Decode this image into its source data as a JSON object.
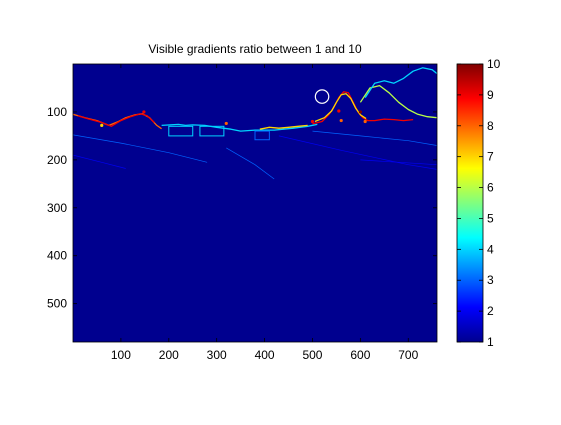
{
  "chart_data": [
    {
      "type": "heatmap",
      "title": "Visible gradients ratio between 1 and 10",
      "xlabel": "",
      "ylabel": "",
      "xlim": [
        0,
        760
      ],
      "ylim": [
        580,
        0
      ],
      "xticks": [
        100,
        200,
        300,
        400,
        500,
        600,
        700
      ],
      "yticks": [
        100,
        200,
        300,
        400,
        500
      ],
      "background_value": 1,
      "colormap": "jet",
      "grid": false,
      "features": [
        {
          "kind": "horizon-edge",
          "value": 8,
          "points": [
            [
              0,
              105
            ],
            [
              25,
              112
            ],
            [
              50,
              118
            ],
            [
              75,
              128
            ],
            [
              95,
              120
            ],
            [
              110,
              112
            ],
            [
              130,
              106
            ],
            [
              145,
              104
            ],
            [
              160,
              112
            ],
            [
              175,
              128
            ],
            [
              185,
              135
            ]
          ]
        },
        {
          "kind": "horizon-edge",
          "value": 9,
          "points": [
            [
              10,
              108
            ],
            [
              30,
              114
            ],
            [
              60,
              122
            ],
            [
              80,
              130
            ],
            [
              100,
              118
            ],
            [
              120,
              110
            ],
            [
              140,
              104
            ],
            [
              155,
              108
            ],
            [
              170,
              122
            ]
          ]
        },
        {
          "kind": "horizon-edge",
          "value": 4,
          "points": [
            [
              185,
              128
            ],
            [
              220,
              126
            ],
            [
              235,
              128
            ],
            [
              250,
              127
            ],
            [
              275,
              128
            ],
            [
              300,
              132
            ],
            [
              330,
              136
            ],
            [
              350,
              140
            ],
            [
              380,
              138
            ],
            [
              420,
              138
            ],
            [
              460,
              134
            ],
            [
              490,
              130
            ],
            [
              510,
              126
            ]
          ]
        },
        {
          "kind": "horizon-edge",
          "value": 7,
          "points": [
            [
              390,
              136
            ],
            [
              410,
              132
            ],
            [
              430,
              134
            ],
            [
              450,
              132
            ],
            [
              470,
              130
            ],
            [
              490,
              128
            ]
          ]
        },
        {
          "kind": "tree-edge",
          "value": 9,
          "points": [
            [
              500,
              125
            ],
            [
              520,
              120
            ],
            [
              535,
              105
            ],
            [
              545,
              90
            ],
            [
              555,
              70
            ],
            [
              565,
              58
            ],
            [
              575,
              60
            ],
            [
              585,
              80
            ],
            [
              595,
              100
            ],
            [
              605,
              112
            ],
            [
              615,
              118
            ],
            [
              630,
              118
            ],
            [
              650,
              115
            ],
            [
              670,
              116
            ],
            [
              690,
              118
            ],
            [
              710,
              116
            ]
          ]
        },
        {
          "kind": "tree-edge",
          "value": 7,
          "points": [
            [
              505,
              120
            ],
            [
              525,
              112
            ],
            [
              540,
              98
            ],
            [
              550,
              80
            ],
            [
              560,
              64
            ],
            [
              570,
              62
            ],
            [
              580,
              72
            ],
            [
              590,
              92
            ],
            [
              600,
              106
            ],
            [
              612,
              114
            ]
          ]
        },
        {
          "kind": "tree-edge",
          "value": 6,
          "points": [
            [
              600,
              80
            ],
            [
              620,
              50
            ],
            [
              640,
              45
            ],
            [
              660,
              60
            ],
            [
              680,
              80
            ],
            [
              700,
              95
            ],
            [
              720,
              105
            ],
            [
              740,
              110
            ],
            [
              760,
              112
            ]
          ]
        },
        {
          "kind": "tree-edge",
          "value": 4,
          "points": [
            [
              610,
              70
            ],
            [
              630,
              40
            ],
            [
              650,
              35
            ],
            [
              670,
              40
            ],
            [
              690,
              30
            ],
            [
              710,
              15
            ],
            [
              730,
              8
            ],
            [
              750,
              12
            ],
            [
              760,
              20
            ]
          ]
        },
        {
          "kind": "road-line",
          "value": 3,
          "points": [
            [
              0,
              148
            ],
            [
              100,
              165
            ],
            [
              200,
              185
            ],
            [
              280,
              205
            ]
          ]
        },
        {
          "kind": "road-line",
          "value": 3,
          "points": [
            [
              320,
              175
            ],
            [
              380,
              210
            ],
            [
              420,
              240
            ]
          ]
        },
        {
          "kind": "road-line",
          "value": 2,
          "points": [
            [
              430,
              150
            ],
            [
              560,
              180
            ],
            [
              700,
              210
            ],
            [
              760,
              220
            ]
          ]
        },
        {
          "kind": "road-line",
          "value": 3,
          "points": [
            [
              500,
              140
            ],
            [
              600,
              150
            ],
            [
              700,
              160
            ],
            [
              760,
              170
            ]
          ]
        },
        {
          "kind": "road-line",
          "value": 2,
          "points": [
            [
              0,
              190
            ],
            [
              60,
              205
            ],
            [
              110,
              218
            ]
          ]
        },
        {
          "kind": "road-line",
          "value": 2,
          "points": [
            [
              600,
              200
            ],
            [
              680,
              205
            ],
            [
              760,
              210
            ]
          ]
        },
        {
          "kind": "box",
          "value": 4,
          "x": [
            200,
            250
          ],
          "y": [
            130,
            150
          ]
        },
        {
          "kind": "box",
          "value": 4,
          "x": [
            265,
            315
          ],
          "y": [
            130,
            150
          ]
        },
        {
          "kind": "box",
          "value": 3,
          "x": [
            380,
            410
          ],
          "y": [
            140,
            158
          ]
        },
        {
          "kind": "circle",
          "value": 5,
          "cx": 520,
          "cy": 68,
          "r": 14
        },
        {
          "kind": "spot",
          "value": 9,
          "x": 555,
          "y": 98
        },
        {
          "kind": "spot",
          "value": 8,
          "x": 560,
          "y": 118
        },
        {
          "kind": "spot",
          "value": 10,
          "x": 600,
          "y": 100
        },
        {
          "kind": "spot",
          "value": 8,
          "x": 610,
          "y": 120
        },
        {
          "kind": "spot",
          "value": 9,
          "x": 148,
          "y": 100
        },
        {
          "kind": "spot",
          "value": 7,
          "x": 60,
          "y": 128
        },
        {
          "kind": "spot",
          "value": 8,
          "x": 320,
          "y": 124
        },
        {
          "kind": "spot",
          "value": 9,
          "x": 500,
          "y": 120
        }
      ]
    },
    {
      "type": "colorbar",
      "ticks": [
        1,
        2,
        3,
        4,
        5,
        6,
        7,
        8,
        9,
        10
      ],
      "range": [
        1,
        10
      ],
      "colormap": "jet"
    }
  ]
}
